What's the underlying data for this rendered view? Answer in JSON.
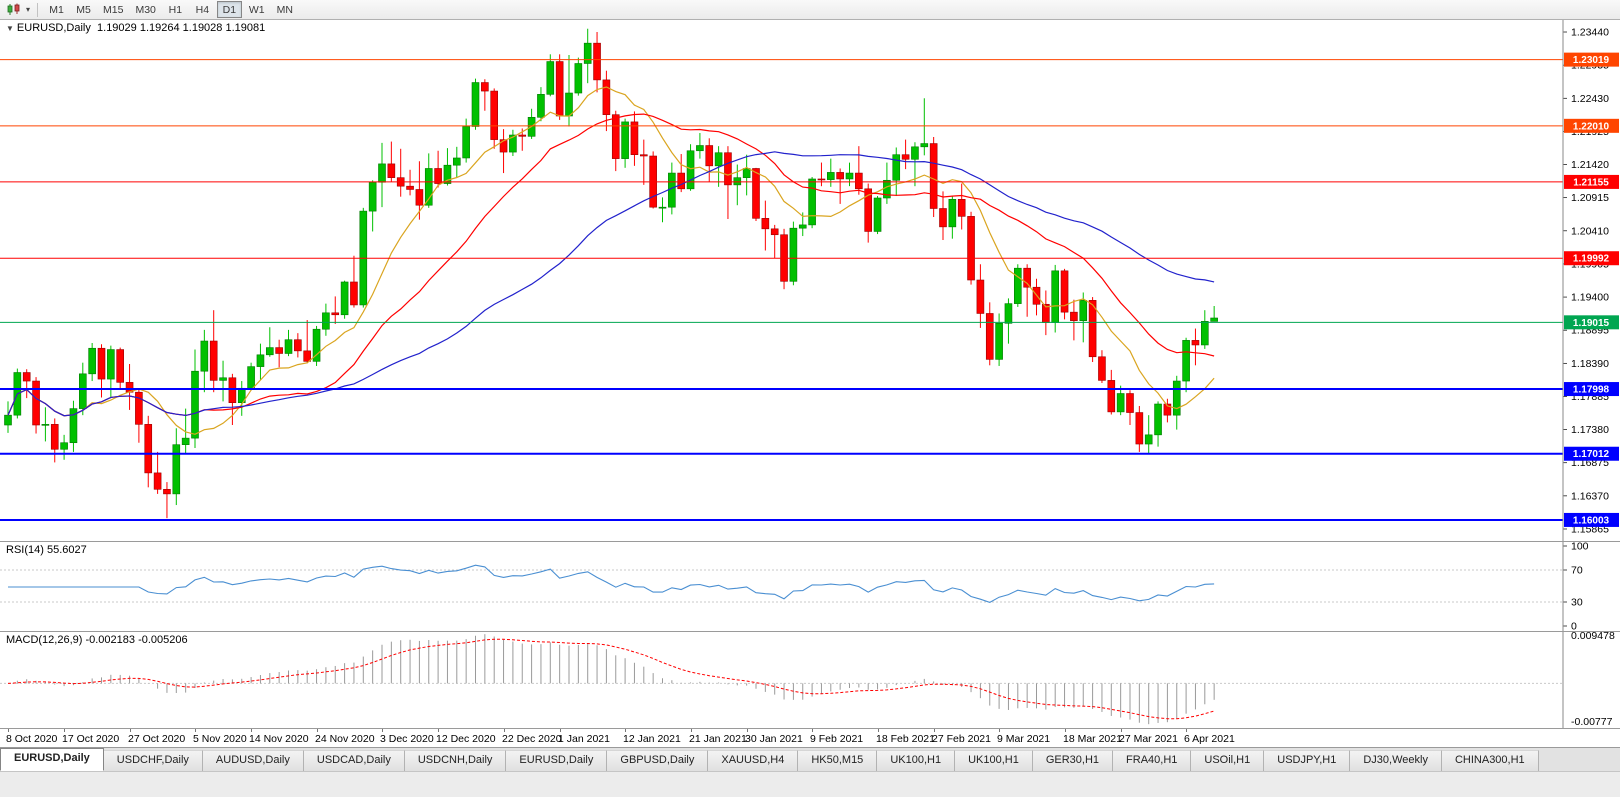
{
  "toolbar": {
    "timeframes": [
      "M1",
      "M5",
      "M15",
      "M30",
      "H1",
      "H4",
      "D1",
      "W1",
      "MN"
    ],
    "active_timeframe": "D1"
  },
  "window": {
    "marker": "▼",
    "symbol": "EURUSD,Daily",
    "ohlc_readout": "1.19029 1.19264 1.19028 1.19081"
  },
  "chart_data": {
    "type": "candlestick",
    "symbol": "EURUSD",
    "timeframe": "Daily",
    "y_scale": {
      "min": 1.15682,
      "max": 1.23623
    },
    "y_axis_ticks": [
      "1.23440",
      "1.22935",
      "1.22430",
      "1.21925",
      "1.21420",
      "1.20915",
      "1.20410",
      "1.19905",
      "1.19400",
      "1.18895",
      "1.18390",
      "1.17885",
      "1.17380",
      "1.16875",
      "1.16370",
      "1.15865"
    ],
    "x_axis_labels": [
      {
        "text": "8 Oct 2020",
        "i": 0
      },
      {
        "text": "17 Oct 2020",
        "i": 6
      },
      {
        "text": "27 Oct 2020",
        "i": 13
      },
      {
        "text": "5 Nov 2020",
        "i": 20
      },
      {
        "text": "14 Nov 2020",
        "i": 26
      },
      {
        "text": "24 Nov 2020",
        "i": 33
      },
      {
        "text": "3 Dec 2020",
        "i": 40
      },
      {
        "text": "12 Dec 2020",
        "i": 46
      },
      {
        "text": "22 Dec 2020",
        "i": 53
      },
      {
        "text": "1 Jan 2021",
        "i": 59
      },
      {
        "text": "12 Jan 2021",
        "i": 66
      },
      {
        "text": "21 Jan 2021",
        "i": 73
      },
      {
        "text": "30 Jan 2021",
        "i": 79
      },
      {
        "text": "9 Feb 2021",
        "i": 86
      },
      {
        "text": "18 Feb 2021",
        "i": 93
      },
      {
        "text": "27 Feb 2021",
        "i": 99
      },
      {
        "text": "9 Mar 2021",
        "i": 106
      },
      {
        "text": "18 Mar 2021",
        "i": 113
      },
      {
        "text": "27 Mar 2021",
        "i": 119
      },
      {
        "text": "6 Apr 2021",
        "i": 126
      }
    ],
    "horizontal_lines": [
      {
        "price": 1.23019,
        "label": "1.23019",
        "color": "#FF4500",
        "width": 1
      },
      {
        "price": 1.2201,
        "label": "1.22010",
        "color": "#FF4500",
        "width": 1
      },
      {
        "price": 1.21155,
        "label": "1.21155",
        "color": "#FF0000",
        "width": 1
      },
      {
        "price": 1.19992,
        "label": "1.19992",
        "color": "#FF0000",
        "width": 1
      },
      {
        "price": 1.19015,
        "label": "1.19015",
        "color": "#00A651",
        "width": 1
      },
      {
        "price": 1.17998,
        "label": "1.17998",
        "color": "#0000FF",
        "width": 2
      },
      {
        "price": 1.17012,
        "label": "1.17012",
        "color": "#0000FF",
        "width": 2
      },
      {
        "price": 1.16003,
        "label": "1.16003",
        "color": "#0000FF",
        "width": 2
      }
    ],
    "moving_averages": [
      {
        "period": 9,
        "color": "#DAA520"
      },
      {
        "period": 21,
        "color": "#FF0000"
      },
      {
        "period": 45,
        "color": "#2222CC"
      }
    ],
    "candles_ohlc": [
      [
        1.1745,
        1.1781,
        1.1733,
        1.176
      ],
      [
        1.176,
        1.1831,
        1.1755,
        1.1825
      ],
      [
        1.1825,
        1.183,
        1.1786,
        1.1812
      ],
      [
        1.1812,
        1.1818,
        1.1732,
        1.1745
      ],
      [
        1.1745,
        1.1772,
        1.172,
        1.1746
      ],
      [
        1.1746,
        1.1755,
        1.1688,
        1.1708
      ],
      [
        1.1708,
        1.173,
        1.1692,
        1.1718
      ],
      [
        1.1718,
        1.1782,
        1.1704,
        1.177
      ],
      [
        1.177,
        1.184,
        1.176,
        1.1823
      ],
      [
        1.1823,
        1.187,
        1.1812,
        1.1862
      ],
      [
        1.1862,
        1.1868,
        1.1787,
        1.1815
      ],
      [
        1.1815,
        1.1866,
        1.1786,
        1.186
      ],
      [
        1.186,
        1.1863,
        1.18,
        1.181
      ],
      [
        1.181,
        1.1838,
        1.1768,
        1.1795
      ],
      [
        1.1795,
        1.18,
        1.1718,
        1.1746
      ],
      [
        1.1746,
        1.1759,
        1.165,
        1.1672
      ],
      [
        1.1672,
        1.1704,
        1.164,
        1.1647
      ],
      [
        1.1647,
        1.1658,
        1.1603,
        1.164
      ],
      [
        1.164,
        1.174,
        1.1623,
        1.1715
      ],
      [
        1.1715,
        1.177,
        1.1702,
        1.1725
      ],
      [
        1.1725,
        1.186,
        1.171,
        1.1827
      ],
      [
        1.1827,
        1.189,
        1.1795,
        1.1873
      ],
      [
        1.1873,
        1.192,
        1.1795,
        1.1813
      ],
      [
        1.1813,
        1.1843,
        1.1781,
        1.1817
      ],
      [
        1.1817,
        1.1823,
        1.1745,
        1.1779
      ],
      [
        1.1779,
        1.1812,
        1.1759,
        1.1801
      ],
      [
        1.1801,
        1.184,
        1.1799,
        1.1834
      ],
      [
        1.1834,
        1.1869,
        1.1814,
        1.1852
      ],
      [
        1.1852,
        1.1894,
        1.1849,
        1.1863
      ],
      [
        1.1863,
        1.1875,
        1.1833,
        1.1854
      ],
      [
        1.1854,
        1.189,
        1.185,
        1.1875
      ],
      [
        1.1875,
        1.1885,
        1.1848,
        1.1858
      ],
      [
        1.1858,
        1.1905,
        1.1839,
        1.1842
      ],
      [
        1.1842,
        1.1896,
        1.1835,
        1.1891
      ],
      [
        1.1891,
        1.193,
        1.1881,
        1.1916
      ],
      [
        1.1916,
        1.1941,
        1.1899,
        1.1913
      ],
      [
        1.1913,
        1.1965,
        1.1907,
        1.1963
      ],
      [
        1.1963,
        1.2003,
        1.1924,
        1.1928
      ],
      [
        1.1928,
        1.2076,
        1.1924,
        1.2071
      ],
      [
        1.2071,
        1.2118,
        1.204,
        1.2115
      ],
      [
        1.2115,
        1.2175,
        1.2077,
        1.2143
      ],
      [
        1.2143,
        1.2177,
        1.2116,
        1.2122
      ],
      [
        1.2122,
        1.2166,
        1.2093,
        1.2109
      ],
      [
        1.2109,
        1.2134,
        1.2095,
        1.2104
      ],
      [
        1.2104,
        1.2147,
        1.2058,
        1.208
      ],
      [
        1.208,
        1.2159,
        1.2076,
        1.2136
      ],
      [
        1.2136,
        1.2163,
        1.2107,
        1.2113
      ],
      [
        1.2113,
        1.2167,
        1.211,
        1.2141
      ],
      [
        1.2141,
        1.2169,
        1.2123,
        1.2152
      ],
      [
        1.2152,
        1.2212,
        1.2145,
        1.22
      ],
      [
        1.22,
        1.2273,
        1.2195,
        1.2267
      ],
      [
        1.2267,
        1.2272,
        1.2224,
        1.2254
      ],
      [
        1.2254,
        1.2258,
        1.2166,
        1.218
      ],
      [
        1.218,
        1.2196,
        1.2129,
        1.2161
      ],
      [
        1.2161,
        1.2195,
        1.2155,
        1.2187
      ],
      [
        1.2187,
        1.2197,
        1.2163,
        1.2185
      ],
      [
        1.2185,
        1.2227,
        1.2181,
        1.2214
      ],
      [
        1.2214,
        1.226,
        1.2208,
        1.2249
      ],
      [
        1.2249,
        1.231,
        1.2246,
        1.2299
      ],
      [
        1.2299,
        1.231,
        1.221,
        1.2216
      ],
      [
        1.2216,
        1.2309,
        1.22,
        1.2251
      ],
      [
        1.2251,
        1.2305,
        1.2247,
        1.2296
      ],
      [
        1.2296,
        1.2349,
        1.2266,
        1.2327
      ],
      [
        1.2327,
        1.2344,
        1.2252,
        1.2271
      ],
      [
        1.2271,
        1.2285,
        1.2193,
        1.2218
      ],
      [
        1.2218,
        1.2224,
        1.2132,
        1.2151
      ],
      [
        1.2151,
        1.2212,
        1.2137,
        1.2207
      ],
      [
        1.2207,
        1.2223,
        1.214,
        1.2157
      ],
      [
        1.2157,
        1.218,
        1.2111,
        1.2155
      ],
      [
        1.2155,
        1.2162,
        1.2075,
        1.2077
      ],
      [
        1.2077,
        1.2092,
        1.2054,
        1.2077
      ],
      [
        1.2077,
        1.2145,
        1.2066,
        1.2129
      ],
      [
        1.2129,
        1.2158,
        1.21,
        1.2105
      ],
      [
        1.2105,
        1.2173,
        1.2102,
        1.2163
      ],
      [
        1.2163,
        1.219,
        1.2151,
        1.2171
      ],
      [
        1.2171,
        1.2182,
        1.2116,
        1.214
      ],
      [
        1.214,
        1.217,
        1.2108,
        1.216
      ],
      [
        1.216,
        1.217,
        1.2059,
        1.2111
      ],
      [
        1.2111,
        1.2142,
        1.208,
        1.2122
      ],
      [
        1.2122,
        1.2157,
        1.2095,
        1.2136
      ],
      [
        1.2136,
        1.2137,
        1.2056,
        1.206
      ],
      [
        1.206,
        1.2087,
        1.2011,
        1.2044
      ],
      [
        1.2044,
        1.205,
        1.1999,
        1.2035
      ],
      [
        1.2035,
        1.2044,
        1.1952,
        1.1964
      ],
      [
        1.1964,
        1.2055,
        1.1958,
        1.2045
      ],
      [
        1.2045,
        1.2069,
        1.2033,
        1.205
      ],
      [
        1.205,
        1.2123,
        1.2045,
        1.212
      ],
      [
        1.212,
        1.2145,
        1.2109,
        1.2119
      ],
      [
        1.2119,
        1.2151,
        1.2108,
        1.213
      ],
      [
        1.213,
        1.2136,
        1.2082,
        1.212
      ],
      [
        1.212,
        1.2145,
        1.2109,
        1.2129
      ],
      [
        1.2129,
        1.217,
        1.2096,
        1.2105
      ],
      [
        1.2105,
        1.2113,
        1.2023,
        1.204
      ],
      [
        1.204,
        1.2094,
        1.2036,
        1.2091
      ],
      [
        1.2091,
        1.2145,
        1.2082,
        1.2118
      ],
      [
        1.2118,
        1.2168,
        1.2094,
        1.2157
      ],
      [
        1.2157,
        1.218,
        1.2135,
        1.215
      ],
      [
        1.215,
        1.2176,
        1.2109,
        1.2169
      ],
      [
        1.2169,
        1.2243,
        1.2156,
        1.2174
      ],
      [
        1.2174,
        1.2184,
        1.2062,
        1.2075
      ],
      [
        1.2075,
        1.2101,
        1.2027,
        1.2047
      ],
      [
        1.2047,
        1.2094,
        1.2029,
        1.2089
      ],
      [
        1.2089,
        1.2113,
        1.2043,
        1.2063
      ],
      [
        1.2063,
        1.207,
        1.1959,
        1.1966
      ],
      [
        1.1966,
        1.199,
        1.1893,
        1.1915
      ],
      [
        1.1915,
        1.1932,
        1.1836,
        1.1845
      ],
      [
        1.1845,
        1.1915,
        1.1835,
        1.19
      ],
      [
        1.19,
        1.1938,
        1.1869,
        1.193
      ],
      [
        1.193,
        1.199,
        1.1925,
        1.1984
      ],
      [
        1.1984,
        1.199,
        1.191,
        1.1955
      ],
      [
        1.1955,
        1.1968,
        1.1912,
        1.1929
      ],
      [
        1.1929,
        1.195,
        1.1882,
        1.1901
      ],
      [
        1.1901,
        1.1989,
        1.1886,
        1.198
      ],
      [
        1.198,
        1.1983,
        1.1906,
        1.1917
      ],
      [
        1.1917,
        1.1936,
        1.1874,
        1.1904
      ],
      [
        1.1904,
        1.1947,
        1.1871,
        1.1935
      ],
      [
        1.1935,
        1.194,
        1.1841,
        1.1849
      ],
      [
        1.1849,
        1.1859,
        1.1809,
        1.1813
      ],
      [
        1.1813,
        1.1829,
        1.1761,
        1.1765
      ],
      [
        1.1765,
        1.1805,
        1.176,
        1.1793
      ],
      [
        1.1793,
        1.1798,
        1.1745,
        1.1764
      ],
      [
        1.1764,
        1.1774,
        1.1704,
        1.1716
      ],
      [
        1.1716,
        1.176,
        1.1702,
        1.173
      ],
      [
        1.173,
        1.1781,
        1.1712,
        1.1777
      ],
      [
        1.1777,
        1.1785,
        1.1749,
        1.176
      ],
      [
        1.176,
        1.182,
        1.1738,
        1.1812
      ],
      [
        1.1812,
        1.1878,
        1.1795,
        1.1874
      ],
      [
        1.1874,
        1.1892,
        1.1836,
        1.1867
      ],
      [
        1.1867,
        1.192,
        1.1861,
        1.1903
      ],
      [
        1.19029,
        1.19264,
        1.19028,
        1.19081
      ]
    ],
    "rsi": {
      "label": "RSI(14) 55.6027",
      "period": 14,
      "axis_ticks": [
        "100",
        "70",
        "30",
        "0"
      ],
      "level_lines": [
        70,
        30
      ],
      "line_color": "#4a8fd2"
    },
    "macd": {
      "label": "MACD(12,26,9) -0.002183 -0.005206",
      "fast": 12,
      "slow": 26,
      "signal": 9,
      "axis_ticks": [
        "0.009478",
        "-0.00777"
      ],
      "scale": {
        "min": -0.00777,
        "max": 0.009478
      },
      "hist_color": "#9a9a9a",
      "signal_color": "#FF0000"
    },
    "colors": {
      "candle_up": "#00C000",
      "candle_up_edge": "#007a00",
      "candle_down": "#FF0000",
      "candle_down_edge": "#990000",
      "axis_text": "#000000"
    }
  },
  "tabs": {
    "active_index": 0,
    "items": [
      "EURUSD,Daily",
      "USDCHF,Daily",
      "AUDUSD,Daily",
      "USDCAD,Daily",
      "USDCNH,Daily",
      "EURUSD,Daily",
      "GBPUSD,Daily",
      "XAUUSD,H4",
      "HK50,M15",
      "UK100,H1",
      "UK100,H1",
      "GER30,H1",
      "FRA40,H1",
      "USOil,H1",
      "USDJPY,H1",
      "DJ30,Weekly",
      "CHINA300,H1"
    ]
  }
}
